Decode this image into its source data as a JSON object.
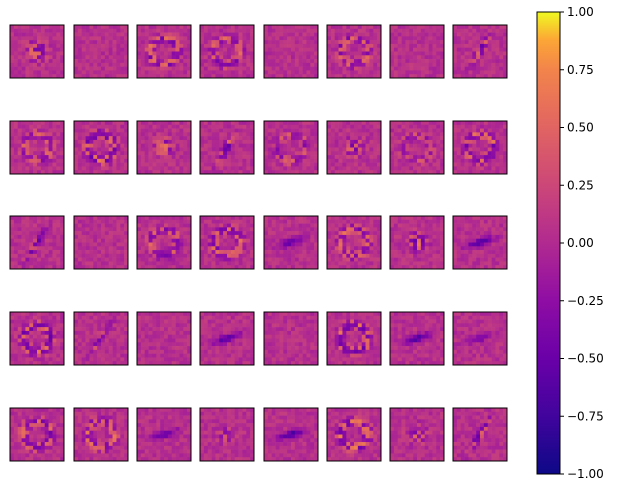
{
  "chart_data": {
    "type": "heatmap",
    "title": "",
    "description_kind": "grid of weight-visualization panels",
    "grid": {
      "rows": 5,
      "cols": 8
    },
    "colormap": "plasma",
    "value_range": [
      -1.0,
      1.0
    ],
    "axes_ticks_visible": false,
    "colorbar": {
      "position": "right",
      "ticks": [
        1.0,
        0.75,
        0.5,
        0.25,
        0.0,
        -0.25,
        -0.5,
        -0.75,
        -1.0
      ],
      "tick_labels": [
        "1.00",
        "0.75",
        "0.50",
        "0.25",
        "0.00",
        "−0.25",
        "−0.50",
        "−0.75",
        "−1.00"
      ]
    },
    "panels": [
      {
        "row": 0,
        "col": 0,
        "pattern": "blob",
        "strength": 0.8
      },
      {
        "row": 0,
        "col": 1,
        "pattern": "flat",
        "strength": 0.1
      },
      {
        "row": 0,
        "col": 2,
        "pattern": "ring",
        "strength": 0.7
      },
      {
        "row": 0,
        "col": 3,
        "pattern": "ring",
        "strength": 0.6
      },
      {
        "row": 0,
        "col": 4,
        "pattern": "flat",
        "strength": 0.15
      },
      {
        "row": 0,
        "col": 5,
        "pattern": "ring",
        "strength": 0.6
      },
      {
        "row": 0,
        "col": 6,
        "pattern": "flat",
        "strength": 0.05
      },
      {
        "row": 0,
        "col": 7,
        "pattern": "diag",
        "strength": 0.8
      },
      {
        "row": 1,
        "col": 0,
        "pattern": "ring",
        "strength": 0.6
      },
      {
        "row": 1,
        "col": 1,
        "pattern": "ring",
        "strength": 0.8
      },
      {
        "row": 1,
        "col": 2,
        "pattern": "blob",
        "strength": 0.7
      },
      {
        "row": 1,
        "col": 3,
        "pattern": "diag",
        "strength": 0.9
      },
      {
        "row": 1,
        "col": 4,
        "pattern": "ring",
        "strength": 0.5
      },
      {
        "row": 1,
        "col": 5,
        "pattern": "blob",
        "strength": 0.7
      },
      {
        "row": 1,
        "col": 6,
        "pattern": "ring",
        "strength": 0.4
      },
      {
        "row": 1,
        "col": 7,
        "pattern": "ring",
        "strength": 0.7
      },
      {
        "row": 2,
        "col": 0,
        "pattern": "diag",
        "strength": 0.8
      },
      {
        "row": 2,
        "col": 1,
        "pattern": "flat",
        "strength": 0.1
      },
      {
        "row": 2,
        "col": 2,
        "pattern": "ring",
        "strength": 0.6
      },
      {
        "row": 2,
        "col": 3,
        "pattern": "ring",
        "strength": 0.7
      },
      {
        "row": 2,
        "col": 4,
        "pattern": "bar",
        "strength": 0.7
      },
      {
        "row": 2,
        "col": 5,
        "pattern": "ring",
        "strength": 0.7
      },
      {
        "row": 2,
        "col": 6,
        "pattern": "blob",
        "strength": 0.8
      },
      {
        "row": 2,
        "col": 7,
        "pattern": "bar",
        "strength": 0.9
      },
      {
        "row": 3,
        "col": 0,
        "pattern": "ring",
        "strength": 0.8
      },
      {
        "row": 3,
        "col": 1,
        "pattern": "diag",
        "strength": 0.6
      },
      {
        "row": 3,
        "col": 2,
        "pattern": "flat",
        "strength": 0.1
      },
      {
        "row": 3,
        "col": 3,
        "pattern": "bar",
        "strength": 0.8
      },
      {
        "row": 3,
        "col": 4,
        "pattern": "flat",
        "strength": 0.15
      },
      {
        "row": 3,
        "col": 5,
        "pattern": "ring",
        "strength": 0.8
      },
      {
        "row": 3,
        "col": 6,
        "pattern": "bar",
        "strength": 0.8
      },
      {
        "row": 3,
        "col": 7,
        "pattern": "bar",
        "strength": 0.6
      },
      {
        "row": 4,
        "col": 0,
        "pattern": "ring",
        "strength": 0.7
      },
      {
        "row": 4,
        "col": 1,
        "pattern": "ring",
        "strength": 0.7
      },
      {
        "row": 4,
        "col": 2,
        "pattern": "bar",
        "strength": 0.7
      },
      {
        "row": 4,
        "col": 3,
        "pattern": "blob",
        "strength": 0.4
      },
      {
        "row": 4,
        "col": 4,
        "pattern": "bar",
        "strength": 0.9
      },
      {
        "row": 4,
        "col": 5,
        "pattern": "ring",
        "strength": 0.8
      },
      {
        "row": 4,
        "col": 6,
        "pattern": "blob",
        "strength": 0.6
      },
      {
        "row": 4,
        "col": 7,
        "pattern": "diag",
        "strength": 0.8
      }
    ]
  }
}
